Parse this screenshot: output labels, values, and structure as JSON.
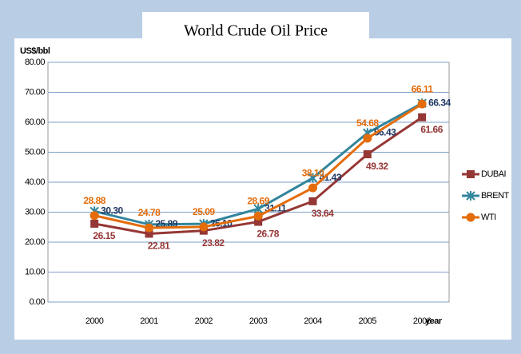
{
  "chart_data": {
    "type": "line",
    "title": "World Crude Oil Price",
    "y_label": "US$/bbl",
    "x_label": "year",
    "categories": [
      "2000",
      "2001",
      "2002",
      "2003",
      "2004",
      "2005",
      "2006"
    ],
    "ylim": [
      0,
      80
    ],
    "yticks": [
      {
        "value": 0,
        "label": "0.00"
      },
      {
        "value": 10,
        "label": "10.00"
      },
      {
        "value": 20,
        "label": "20.00"
      },
      {
        "value": 30,
        "label": "30.00"
      },
      {
        "value": 40,
        "label": "40.00"
      },
      {
        "value": 50,
        "label": "50.00"
      },
      {
        "value": 60,
        "label": "60.00"
      },
      {
        "value": 70,
        "label": "70.00"
      },
      {
        "value": 80,
        "label": "80.00"
      }
    ],
    "grid": true,
    "legend": "right",
    "series": [
      {
        "name": "DUBAI",
        "color": "#953735",
        "marker": "square",
        "values": [
          26.15,
          22.81,
          23.82,
          26.78,
          33.64,
          49.32,
          61.66
        ],
        "value_labels": [
          "26.15",
          "22.81",
          "23.82",
          "26.78",
          "33.64",
          "49.32",
          "61.66"
        ]
      },
      {
        "name": "BRENT",
        "color": "#31859c",
        "label_color": "#1f3864",
        "marker": "x",
        "values": [
          30.3,
          25.89,
          26.1,
          31.11,
          41.43,
          56.43,
          66.34
        ],
        "value_labels": [
          "30.30",
          "25.89",
          "26.10",
          "31.11",
          "41.43",
          "56.43",
          "66.34"
        ]
      },
      {
        "name": "WTI",
        "color": "#e46c0a",
        "marker": "circle",
        "values": [
          28.88,
          24.78,
          25.09,
          28.69,
          38.1,
          54.68,
          66.11
        ],
        "value_labels": [
          "28.88",
          "24.78",
          "25.09",
          "28.69",
          "38.10",
          "54.68",
          "66.11"
        ]
      }
    ]
  }
}
